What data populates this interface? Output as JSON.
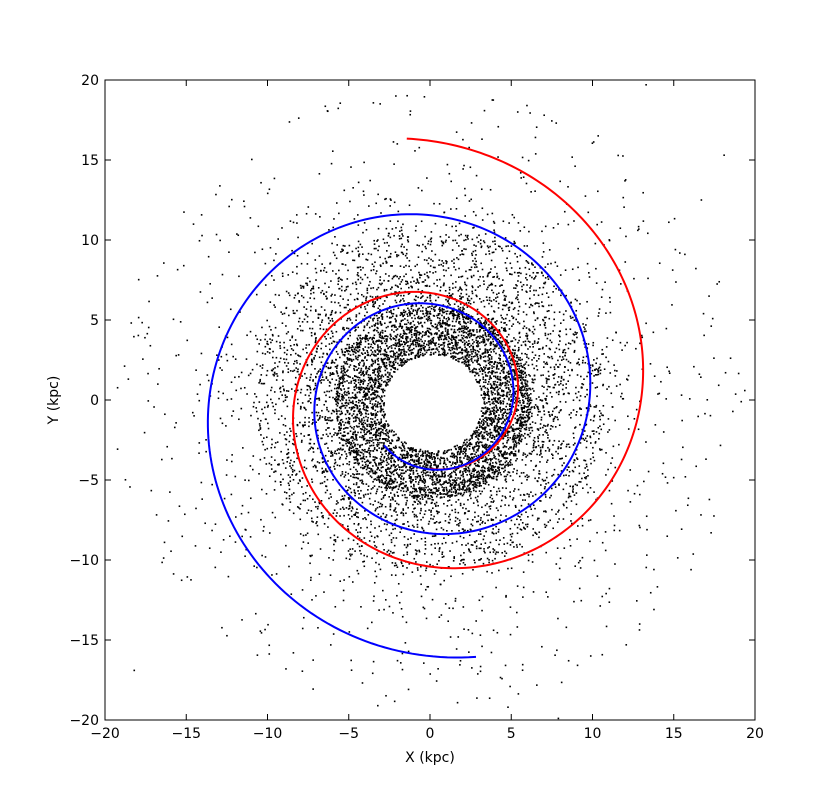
{
  "chart_data": {
    "type": "scatter",
    "title": "",
    "xlabel": "X (kpc)",
    "ylabel": "Y (kpc)",
    "xlim": [
      -20,
      20
    ],
    "ylim": [
      -20,
      20
    ],
    "xticks": [
      -20,
      -15,
      -10,
      -5,
      0,
      5,
      10,
      15,
      20
    ],
    "yticks": [
      -20,
      -15,
      -10,
      -5,
      0,
      5,
      10,
      15,
      20
    ],
    "xtick_labels": [
      "−20",
      "−15",
      "−10",
      "−5",
      "0",
      "5",
      "10",
      "15",
      "20"
    ],
    "ytick_labels": [
      "−20",
      "−15",
      "−10",
      "−5",
      "0",
      "5",
      "10",
      "15",
      "20"
    ],
    "grid": false,
    "series": [
      {
        "kind": "scatter",
        "color": "#000000",
        "marker": "point",
        "distribution": {
          "inner_hole_radius_kpc": 3.0,
          "dense_ring_outer_radius_kpc": 5.5,
          "medium_ring_outer_radius_kpc": 10.5,
          "sparse_extent_kpc": 19.5,
          "approx_point_count": 9000
        },
        "outliers": [
          {
            "x": -18.2,
            "y": -16.9
          },
          {
            "x": 18.1,
            "y": 15.3
          },
          {
            "x": 17.3,
            "y": -8.3
          },
          {
            "x": 16.7,
            "y": 12.5
          },
          {
            "x": 13.3,
            "y": 19.7
          },
          {
            "x": -2.1,
            "y": 19.0
          },
          {
            "x": 5.4,
            "y": 18.0
          },
          {
            "x": 3.2,
            "y": 16.3
          },
          {
            "x": 4.8,
            "y": -19.2
          },
          {
            "x": 7.9,
            "y": -19.9
          },
          {
            "x": 0.5,
            "y": -16.8
          },
          {
            "x": -8.4,
            "y": 11.1
          }
        ]
      },
      {
        "kind": "spiral",
        "color": "#ff0000",
        "r_start": 4.3,
        "r_end": 16.4,
        "theta_start_deg": 270,
        "theta_end_deg": 815
      },
      {
        "kind": "spiral",
        "color": "#0000ff",
        "r_start": 4.0,
        "r_end": 16.3,
        "theta_start_deg": 225,
        "theta_end_deg": 1000
      }
    ]
  }
}
